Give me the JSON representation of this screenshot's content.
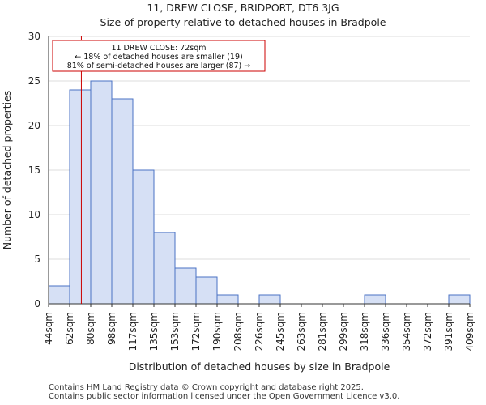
{
  "chart_data": {
    "type": "bar",
    "title": "11, DREW CLOSE, BRIDPORT, DT6 3JG",
    "subtitle": "Size of property relative to detached houses in Bradpole",
    "xlabel": "Distribution of detached houses by size in Bradpole",
    "ylabel": "Number of detached properties",
    "bin_edges": [
      44,
      62,
      80,
      98,
      117,
      135,
      153,
      172,
      190,
      208,
      226,
      245,
      263,
      281,
      299,
      318,
      336,
      354,
      372,
      391,
      409
    ],
    "tick_labels": [
      "44sqm",
      "62sqm",
      "80sqm",
      "98sqm",
      "117sqm",
      "135sqm",
      "153sqm",
      "172sqm",
      "190sqm",
      "208sqm",
      "226sqm",
      "245sqm",
      "263sqm",
      "281sqm",
      "299sqm",
      "318sqm",
      "336sqm",
      "354sqm",
      "372sqm",
      "391sqm",
      "409sqm"
    ],
    "values": [
      2,
      24,
      25,
      23,
      15,
      8,
      4,
      3,
      1,
      0,
      1,
      0,
      0,
      0,
      0,
      1,
      0,
      0,
      0,
      1
    ],
    "ylim": [
      0,
      30
    ],
    "yticks": [
      0,
      5,
      10,
      15,
      20,
      25,
      30
    ],
    "marker_value": 72,
    "annotation": {
      "line1": "11 DREW CLOSE: 72sqm",
      "line2": "← 18% of detached houses are smaller (19)",
      "line3": "81% of semi-detached houses are larger (87) →"
    },
    "colors": {
      "bar_fill": "#d6e0f5",
      "bar_edge": "#4a72c4",
      "marker": "#cc0000",
      "grid": "#dddddd"
    }
  },
  "footer": {
    "line1": "Contains HM Land Registry data © Crown copyright and database right 2025.",
    "line2": "Contains public sector information licensed under the Open Government Licence v3.0."
  }
}
